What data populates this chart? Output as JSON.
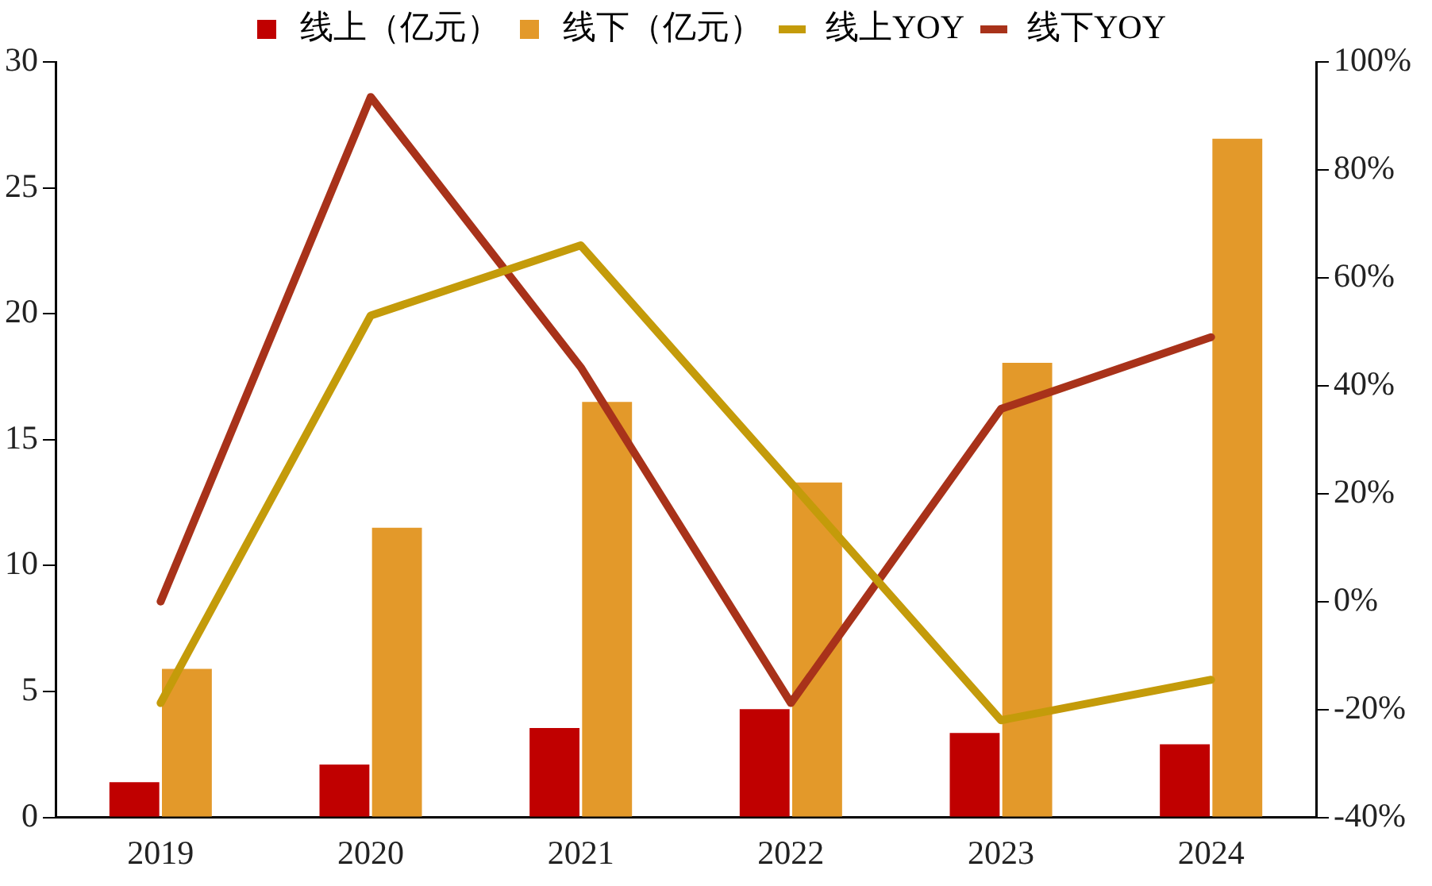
{
  "chart_data": {
    "type": "bar",
    "categories": [
      "2019",
      "2020",
      "2021",
      "2022",
      "2023",
      "2024"
    ],
    "series": [
      {
        "name": "线上（亿元）",
        "color": "#c00000",
        "values": [
          1.4,
          2.1,
          3.55,
          4.3,
          3.35,
          2.9
        ]
      },
      {
        "name": "线下（亿元）",
        "color": "#e3992a",
        "values": [
          5.9,
          11.5,
          16.5,
          13.3,
          18.05,
          26.95
        ]
      },
      {
        "name": "线上YOY",
        "type": "line",
        "axis": "y2",
        "color": "#c49b0a",
        "values": [
          -18.8,
          53,
          66,
          22,
          -22,
          -14.5
        ]
      },
      {
        "name": "线下YOY",
        "type": "line",
        "axis": "y2",
        "color": "#a8321a",
        "values": [
          0,
          93.5,
          43.4,
          -18.8,
          35.7,
          49
        ]
      }
    ],
    "ylim": [
      0,
      30
    ],
    "yticks": [
      0,
      5,
      10,
      15,
      20,
      25,
      30
    ],
    "y2lim": [
      -40,
      100
    ],
    "y2ticks": [
      {
        "value": -40,
        "label": "-40%"
      },
      {
        "value": -20,
        "label": "-20%"
      },
      {
        "value": 0,
        "label": "0%"
      },
      {
        "value": 20,
        "label": "20%"
      },
      {
        "value": 40,
        "label": "40%"
      },
      {
        "value": 60,
        "label": "60%"
      },
      {
        "value": 80,
        "label": "80%"
      },
      {
        "value": 100,
        "label": "100%"
      }
    ],
    "legend": "top",
    "grid": false,
    "marker": "none",
    "line_style": "solid"
  }
}
